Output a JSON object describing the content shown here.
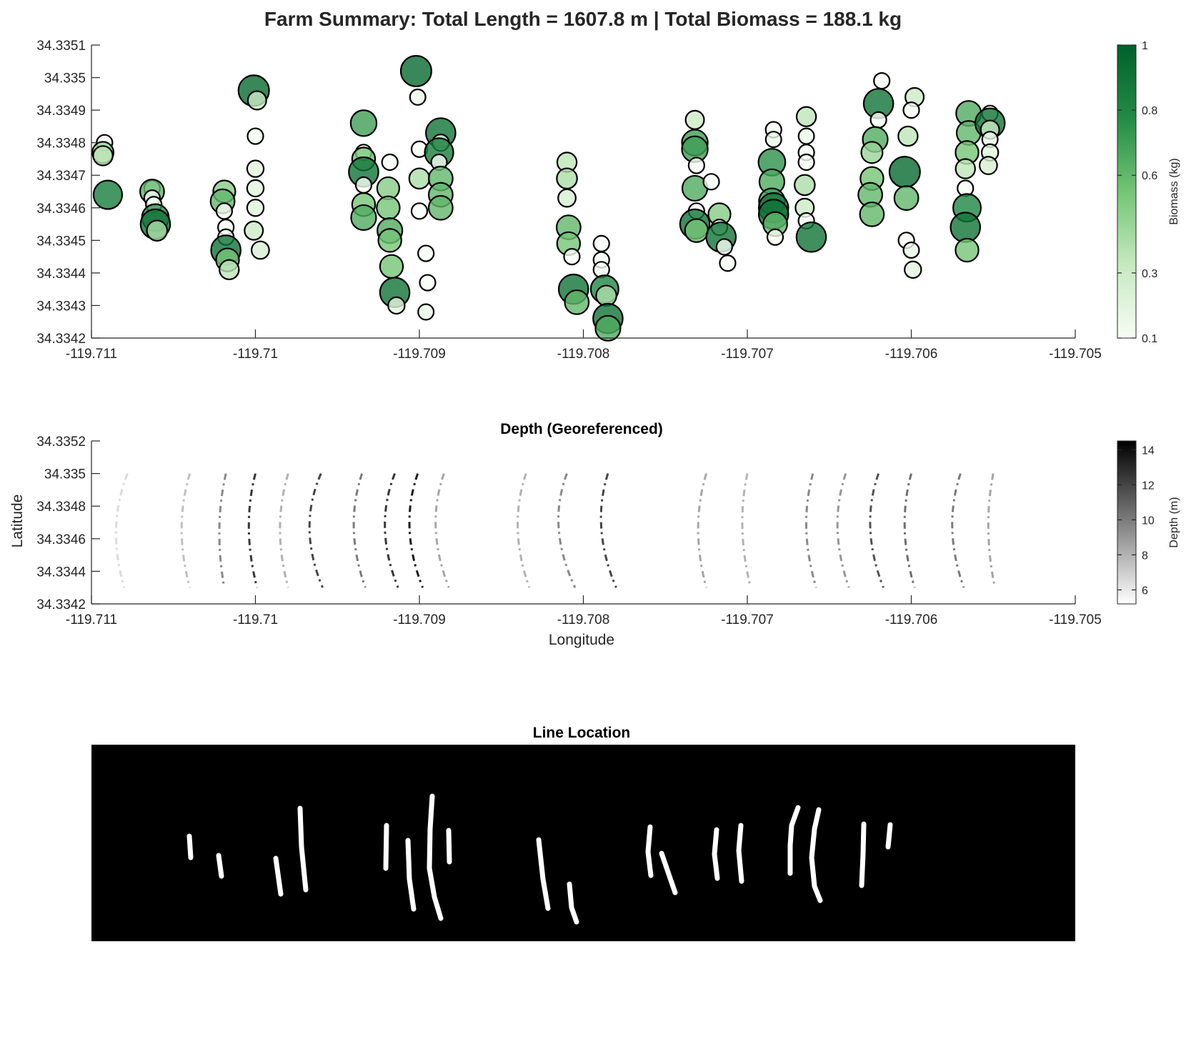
{
  "figure": {
    "title": "Farm Summary: Total Length = 1607.8 m | Total Biomass = 188.1 kg"
  },
  "colors": {
    "background": "#ffffff",
    "axis": "#262626",
    "biomass_low": "#f7fcf5",
    "biomass_high": "#00602b",
    "depth_low": "#ffffff",
    "depth_high": "#000000",
    "mask_background": "#000000",
    "mask_line": "#ffffff"
  },
  "chart_data": [
    {
      "type": "scatter",
      "title": "Farm Summary: Total Length = 1607.8 m | Total Biomass = 188.1 kg",
      "xlabel": "",
      "ylabel": "",
      "xlim": [
        -119.711,
        -119.705
      ],
      "ylim": [
        34.3342,
        34.3351
      ],
      "x_ticks": [
        "-119.711",
        "-119.71",
        "-119.709",
        "-119.708",
        "-119.707",
        "-119.706",
        "-119.705"
      ],
      "y_ticks": [
        "34.3342",
        "34.3343",
        "34.3344",
        "34.3345",
        "34.3346",
        "34.3347",
        "34.3348",
        "34.3349",
        "34.335",
        "34.3351"
      ],
      "colorbar": {
        "label": "Biomass (kg)",
        "ticks": [
          "0.1",
          "0.3",
          "0.6",
          "0.8",
          "1"
        ],
        "range": [
          0.1,
          1.0
        ]
      },
      "marker_size_encodes": "biomass",
      "points": [
        {
          "x": -119.71092,
          "y": 34.3348,
          "v": 0.1
        },
        {
          "x": -119.71093,
          "y": 34.33477,
          "v": 0.45
        },
        {
          "x": -119.71093,
          "y": 34.33476,
          "v": 0.35
        },
        {
          "x": -119.7109,
          "y": 34.33464,
          "v": 0.85
        },
        {
          "x": -119.71063,
          "y": 34.33466,
          "v": 0.1
        },
        {
          "x": -119.71063,
          "y": 34.33465,
          "v": 0.6
        },
        {
          "x": -119.71063,
          "y": 34.33463,
          "v": 0.1
        },
        {
          "x": -119.71062,
          "y": 34.33461,
          "v": 0.1
        },
        {
          "x": -119.71061,
          "y": 34.33457,
          "v": 0.75
        },
        {
          "x": -119.71061,
          "y": 34.33455,
          "v": 0.9
        },
        {
          "x": -119.7106,
          "y": 34.33453,
          "v": 0.4
        },
        {
          "x": -119.71019,
          "y": 34.33465,
          "v": 0.5
        },
        {
          "x": -119.7102,
          "y": 34.33462,
          "v": 0.6
        },
        {
          "x": -119.71019,
          "y": 34.33459,
          "v": 0.1
        },
        {
          "x": -119.71018,
          "y": 34.33454,
          "v": 0.1
        },
        {
          "x": -119.71018,
          "y": 34.33451,
          "v": 0.1
        },
        {
          "x": -119.71018,
          "y": 34.33447,
          "v": 0.9
        },
        {
          "x": -119.71017,
          "y": 34.33444,
          "v": 0.55
        },
        {
          "x": -119.71016,
          "y": 34.33441,
          "v": 0.35
        },
        {
          "x": -119.71001,
          "y": 34.33496,
          "v": 0.95
        },
        {
          "x": -119.70999,
          "y": 34.33493,
          "v": 0.3
        },
        {
          "x": -119.71,
          "y": 34.33482,
          "v": 0.1
        },
        {
          "x": -119.71,
          "y": 34.33472,
          "v": 0.2
        },
        {
          "x": -119.71,
          "y": 34.33466,
          "v": 0.2
        },
        {
          "x": -119.71,
          "y": 34.3346,
          "v": 0.2
        },
        {
          "x": -119.71001,
          "y": 34.33453,
          "v": 0.3
        },
        {
          "x": -119.70997,
          "y": 34.33447,
          "v": 0.25
        },
        {
          "x": -119.70934,
          "y": 34.33486,
          "v": 0.7
        },
        {
          "x": -119.70934,
          "y": 34.33477,
          "v": 0.1
        },
        {
          "x": -119.70934,
          "y": 34.33475,
          "v": 0.55
        },
        {
          "x": -119.70934,
          "y": 34.33471,
          "v": 0.9
        },
        {
          "x": -119.70934,
          "y": 34.33467,
          "v": 0.1
        },
        {
          "x": -119.70934,
          "y": 34.33461,
          "v": 0.55
        },
        {
          "x": -119.70934,
          "y": 34.33457,
          "v": 0.65
        },
        {
          "x": -119.70918,
          "y": 34.33474,
          "v": 0.1
        },
        {
          "x": -119.70919,
          "y": 34.33466,
          "v": 0.5
        },
        {
          "x": -119.70919,
          "y": 34.3346,
          "v": 0.55
        },
        {
          "x": -119.70918,
          "y": 34.33453,
          "v": 0.65
        },
        {
          "x": -119.70918,
          "y": 34.3345,
          "v": 0.55
        },
        {
          "x": -119.70917,
          "y": 34.33442,
          "v": 0.55
        },
        {
          "x": -119.70915,
          "y": 34.33434,
          "v": 0.9
        },
        {
          "x": -119.70914,
          "y": 34.3343,
          "v": 0.2
        },
        {
          "x": -119.70902,
          "y": 34.33502,
          "v": 0.95
        },
        {
          "x": -119.70901,
          "y": 34.33494,
          "v": 0.15
        },
        {
          "x": -119.709,
          "y": 34.33478,
          "v": 0.1
        },
        {
          "x": -119.709,
          "y": 34.33469,
          "v": 0.4
        },
        {
          "x": -119.709,
          "y": 34.33459,
          "v": 0.1
        },
        {
          "x": -119.70896,
          "y": 34.33446,
          "v": 0.1
        },
        {
          "x": -119.70895,
          "y": 34.33437,
          "v": 0.1
        },
        {
          "x": -119.70896,
          "y": 34.33428,
          "v": 0.15
        },
        {
          "x": -119.70887,
          "y": 34.33483,
          "v": 0.9
        },
        {
          "x": -119.70887,
          "y": 34.3348,
          "v": 0.2
        },
        {
          "x": -119.70888,
          "y": 34.33477,
          "v": 0.85
        },
        {
          "x": -119.70888,
          "y": 34.33474,
          "v": 0.1
        },
        {
          "x": -119.70887,
          "y": 34.33469,
          "v": 0.6
        },
        {
          "x": -119.70887,
          "y": 34.33464,
          "v": 0.6
        },
        {
          "x": -119.70887,
          "y": 34.3346,
          "v": 0.6
        },
        {
          "x": -119.7081,
          "y": 34.33474,
          "v": 0.35
        },
        {
          "x": -119.7081,
          "y": 34.33469,
          "v": 0.4
        },
        {
          "x": -119.7081,
          "y": 34.33463,
          "v": 0.25
        },
        {
          "x": -119.70809,
          "y": 34.33454,
          "v": 0.6
        },
        {
          "x": -119.70809,
          "y": 34.33449,
          "v": 0.55
        },
        {
          "x": -119.70807,
          "y": 34.33445,
          "v": 0.1
        },
        {
          "x": -119.70806,
          "y": 34.33435,
          "v": 0.9
        },
        {
          "x": -119.70804,
          "y": 34.33431,
          "v": 0.6
        },
        {
          "x": -119.70789,
          "y": 34.33449,
          "v": 0.1
        },
        {
          "x": -119.70789,
          "y": 34.33444,
          "v": 0.1
        },
        {
          "x": -119.70789,
          "y": 34.33441,
          "v": 0.1
        },
        {
          "x": -119.70787,
          "y": 34.33435,
          "v": 0.8
        },
        {
          "x": -119.70786,
          "y": 34.33433,
          "v": 0.4
        },
        {
          "x": -119.70785,
          "y": 34.33426,
          "v": 0.9
        },
        {
          "x": -119.70785,
          "y": 34.33423,
          "v": 0.65
        },
        {
          "x": -119.70732,
          "y": 34.33487,
          "v": 0.3
        },
        {
          "x": -119.70732,
          "y": 34.3348,
          "v": 0.7
        },
        {
          "x": -119.70732,
          "y": 34.33478,
          "v": 0.7
        },
        {
          "x": -119.70731,
          "y": 34.33473,
          "v": 0.1
        },
        {
          "x": -119.70732,
          "y": 34.33466,
          "v": 0.65
        },
        {
          "x": -119.70731,
          "y": 34.33459,
          "v": 0.1
        },
        {
          "x": -119.70732,
          "y": 34.33455,
          "v": 0.9
        },
        {
          "x": -119.70731,
          "y": 34.33453,
          "v": 0.55
        },
        {
          "x": -119.70722,
          "y": 34.33468,
          "v": 0.1
        },
        {
          "x": -119.70717,
          "y": 34.33458,
          "v": 0.5
        },
        {
          "x": -119.70717,
          "y": 34.33454,
          "v": 0.1
        },
        {
          "x": -119.70716,
          "y": 34.33451,
          "v": 0.9
        },
        {
          "x": -119.70714,
          "y": 34.33448,
          "v": 0.1
        },
        {
          "x": -119.70712,
          "y": 34.33443,
          "v": 0.1
        },
        {
          "x": -119.70684,
          "y": 34.33484,
          "v": 0.1
        },
        {
          "x": -119.70684,
          "y": 34.33481,
          "v": 0.15
        },
        {
          "x": -119.70685,
          "y": 34.33474,
          "v": 0.75
        },
        {
          "x": -119.70685,
          "y": 34.33468,
          "v": 0.65
        },
        {
          "x": -119.70685,
          "y": 34.33462,
          "v": 0.7
        },
        {
          "x": -119.70684,
          "y": 34.3346,
          "v": 0.9
        },
        {
          "x": -119.70684,
          "y": 34.33458,
          "v": 0.9
        },
        {
          "x": -119.70683,
          "y": 34.33455,
          "v": 0.6
        },
        {
          "x": -119.70683,
          "y": 34.33451,
          "v": 0.1
        },
        {
          "x": -119.70664,
          "y": 34.33488,
          "v": 0.35
        },
        {
          "x": -119.70664,
          "y": 34.33482,
          "v": 0.15
        },
        {
          "x": -119.70664,
          "y": 34.33477,
          "v": 0.1
        },
        {
          "x": -119.70664,
          "y": 34.33474,
          "v": 0.1
        },
        {
          "x": -119.70665,
          "y": 34.33467,
          "v": 0.4
        },
        {
          "x": -119.70665,
          "y": 34.3346,
          "v": 0.3
        },
        {
          "x": -119.70664,
          "y": 34.33456,
          "v": 0.1
        },
        {
          "x": -119.70661,
          "y": 34.33451,
          "v": 0.9
        },
        {
          "x": -119.70618,
          "y": 34.33499,
          "v": 0.1
        },
        {
          "x": -119.7062,
          "y": 34.33492,
          "v": 0.9
        },
        {
          "x": -119.7062,
          "y": 34.33487,
          "v": 0.1
        },
        {
          "x": -119.70622,
          "y": 34.33481,
          "v": 0.65
        },
        {
          "x": -119.70624,
          "y": 34.33477,
          "v": 0.45
        },
        {
          "x": -119.70624,
          "y": 34.33469,
          "v": 0.55
        },
        {
          "x": -119.70625,
          "y": 34.33464,
          "v": 0.6
        },
        {
          "x": -119.70624,
          "y": 34.33458,
          "v": 0.6
        },
        {
          "x": -119.70598,
          "y": 34.33494,
          "v": 0.3
        },
        {
          "x": -119.706,
          "y": 34.3349,
          "v": 0.1
        },
        {
          "x": -119.70602,
          "y": 34.33482,
          "v": 0.35
        },
        {
          "x": -119.70604,
          "y": 34.33471,
          "v": 0.95
        },
        {
          "x": -119.70603,
          "y": 34.33463,
          "v": 0.6
        },
        {
          "x": -119.70603,
          "y": 34.3345,
          "v": 0.1
        },
        {
          "x": -119.706,
          "y": 34.33447,
          "v": 0.15
        },
        {
          "x": -119.70599,
          "y": 34.33441,
          "v": 0.2
        },
        {
          "x": -119.70565,
          "y": 34.33489,
          "v": 0.65
        },
        {
          "x": -119.70565,
          "y": 34.33483,
          "v": 0.6
        },
        {
          "x": -119.70566,
          "y": 34.33477,
          "v": 0.55
        },
        {
          "x": -119.70567,
          "y": 34.33472,
          "v": 0.35
        },
        {
          "x": -119.70567,
          "y": 34.33466,
          "v": 0.1
        },
        {
          "x": -119.70566,
          "y": 34.3346,
          "v": 0.8
        },
        {
          "x": -119.70567,
          "y": 34.33454,
          "v": 0.9
        },
        {
          "x": -119.70566,
          "y": 34.33447,
          "v": 0.55
        },
        {
          "x": -119.70552,
          "y": 34.33489,
          "v": 0.1
        },
        {
          "x": -119.70552,
          "y": 34.33486,
          "v": 0.9
        },
        {
          "x": -119.70552,
          "y": 34.33484,
          "v": 0.3
        },
        {
          "x": -119.70552,
          "y": 34.33481,
          "v": 0.15
        },
        {
          "x": -119.70552,
          "y": 34.33477,
          "v": 0.2
        },
        {
          "x": -119.70553,
          "y": 34.33473,
          "v": 0.25
        }
      ]
    },
    {
      "type": "heatmap",
      "title": "Depth (Georeferenced)",
      "xlabel": "Longitude",
      "ylabel": "Latitude",
      "xlim": [
        -119.711,
        -119.705
      ],
      "ylim": [
        34.3342,
        34.3352
      ],
      "x_ticks": [
        "-119.711",
        "-119.71",
        "-119.709",
        "-119.708",
        "-119.707",
        "-119.706",
        "-119.705"
      ],
      "y_ticks": [
        "34.3342",
        "34.3344",
        "34.3346",
        "34.3348",
        "34.335",
        "34.3352"
      ],
      "colorbar": {
        "label": "Depth (m)",
        "ticks": [
          "6",
          "8",
          "10",
          "12",
          "14"
        ],
        "range": [
          5.2,
          14.5
        ]
      },
      "arcs": [
        {
          "x_top": -119.71078,
          "x_mid": -119.71085,
          "x_bot": -119.7108,
          "depth": 6.5
        },
        {
          "x_top": -119.7104,
          "x_mid": -119.71045,
          "x_bot": -119.7104,
          "depth": 7.5
        },
        {
          "x_top": -119.71018,
          "x_mid": -119.71022,
          "x_bot": -119.71019,
          "depth": 9.5
        },
        {
          "x_top": -119.71,
          "x_mid": -119.71004,
          "x_bot": -119.70999,
          "depth": 12.5
        },
        {
          "x_top": -119.7098,
          "x_mid": -119.70985,
          "x_bot": -119.7098,
          "depth": 8.0
        },
        {
          "x_top": -119.7096,
          "x_mid": -119.70967,
          "x_bot": -119.70959,
          "depth": 12.0
        },
        {
          "x_top": -119.70935,
          "x_mid": -119.7094,
          "x_bot": -119.70933,
          "depth": 10.0
        },
        {
          "x_top": -119.70915,
          "x_mid": -119.70921,
          "x_bot": -119.70913,
          "depth": 12.5
        },
        {
          "x_top": -119.70901,
          "x_mid": -119.70906,
          "x_bot": -119.70898,
          "depth": 13.5
        },
        {
          "x_top": -119.70885,
          "x_mid": -119.7089,
          "x_bot": -119.70882,
          "depth": 8.5
        },
        {
          "x_top": -119.70835,
          "x_mid": -119.7084,
          "x_bot": -119.70833,
          "depth": 8.0
        },
        {
          "x_top": -119.7081,
          "x_mid": -119.70815,
          "x_bot": -119.70805,
          "depth": 9.5
        },
        {
          "x_top": -119.70785,
          "x_mid": -119.70789,
          "x_bot": -119.7078,
          "depth": 12.0
        },
        {
          "x_top": -119.70725,
          "x_mid": -119.7073,
          "x_bot": -119.70725,
          "depth": 8.5
        },
        {
          "x_top": -119.707,
          "x_mid": -119.70703,
          "x_bot": -119.70698,
          "depth": 8.0
        },
        {
          "x_top": -119.7066,
          "x_mid": -119.70664,
          "x_bot": -119.70658,
          "depth": 9.5
        },
        {
          "x_top": -119.7064,
          "x_mid": -119.70645,
          "x_bot": -119.70638,
          "depth": 9.0
        },
        {
          "x_top": -119.7062,
          "x_mid": -119.70625,
          "x_bot": -119.70617,
          "depth": 11.5
        },
        {
          "x_top": -119.706,
          "x_mid": -119.70604,
          "x_bot": -119.70598,
          "depth": 10.5
        },
        {
          "x_top": -119.7057,
          "x_mid": -119.70575,
          "x_bot": -119.70568,
          "depth": 10.0
        },
        {
          "x_top": -119.7055,
          "x_mid": -119.70553,
          "x_bot": -119.70549,
          "depth": 8.5
        }
      ]
    },
    {
      "type": "heatmap",
      "title": "Line Location",
      "xlabel": "",
      "ylabel": "",
      "encoding": "binary mask: white = line, black = background"
    }
  ]
}
